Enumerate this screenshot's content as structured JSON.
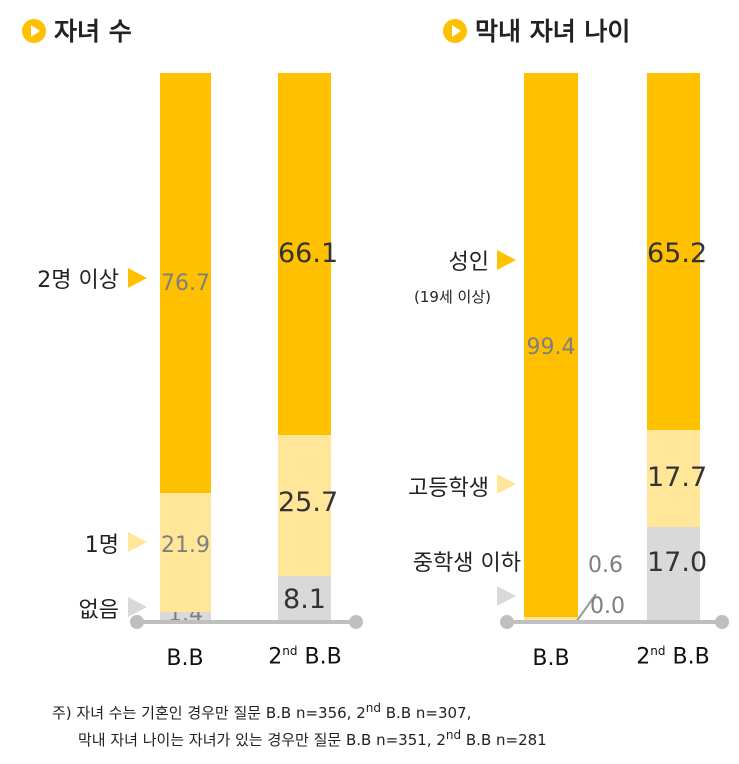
{
  "colors": {
    "top": "#FFC000",
    "mid": "#FFE699",
    "bottom": "#D9D9D9"
  },
  "chart_data": [
    {
      "type": "bar",
      "stacked": true,
      "title": "자녀 수",
      "categories": [
        "B.B",
        "2nd B.B"
      ],
      "series": [
        {
          "name": "없음",
          "values": [
            1.4,
            8.1
          ]
        },
        {
          "name": "1명",
          "values": [
            21.9,
            25.7
          ]
        },
        {
          "name": "2명 이상",
          "values": [
            76.7,
            66.1
          ]
        }
      ]
    },
    {
      "type": "bar",
      "stacked": true,
      "title": "막내 자녀 나이",
      "categories": [
        "B.B",
        "2nd B.B"
      ],
      "series": [
        {
          "name": "중학생 이하",
          "values": [
            0.0,
            17.0
          ]
        },
        {
          "name": "고등학생",
          "values": [
            0.6,
            17.7
          ]
        },
        {
          "name": "성인",
          "sublabel": "(19세 이상)",
          "values": [
            99.4,
            65.2
          ]
        }
      ]
    }
  ],
  "xlabels": {
    "bb": "B.B",
    "nd_base": "2",
    "nd_sup": "nd",
    "nd_rest": " B.B"
  },
  "footnote": {
    "line1_a": "주) 자녀 수는 기혼인 경우만 질문 B.B n=356, 2",
    "line1_sup": "nd",
    "line1_b": " B.B n=307,",
    "line2_a": "막내 자녀 나이는 자녀가 있는 경우만 질문 B.B n=351, 2",
    "line2_sup": "nd",
    "line2_b": " B.B n=281"
  }
}
